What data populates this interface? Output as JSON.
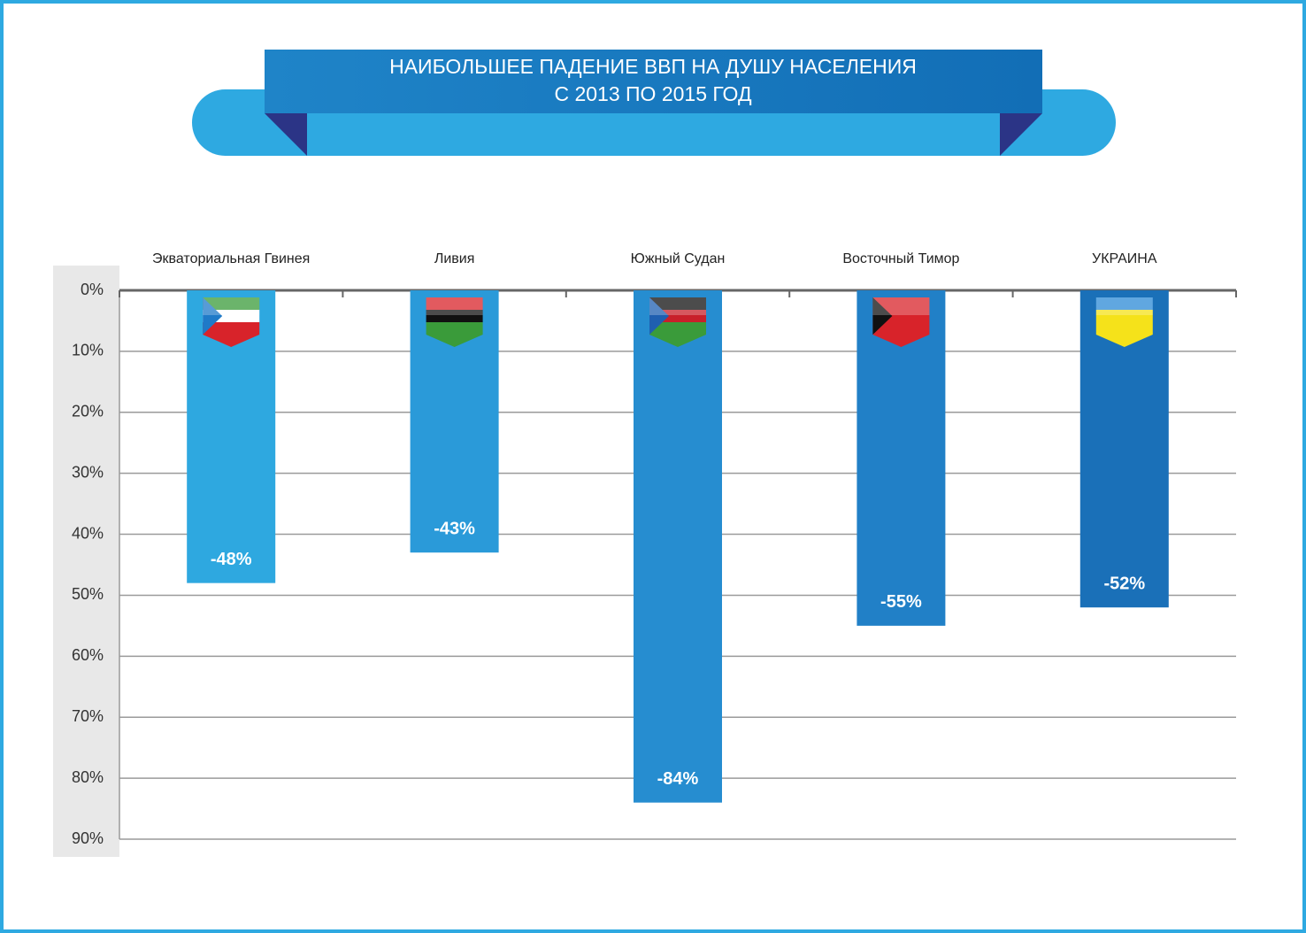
{
  "chart_data": {
    "type": "bar",
    "title": [
      "НАИБОЛЬШЕЕ ПАДЕНИЕ ВВП НА ДУШУ НАСЕЛЕНИЯ",
      "С 2013 ПО 2015 ГОД"
    ],
    "categories": [
      "Экваториальная Гвинея",
      "Ливия",
      "Южный Судан",
      "Восточный Тимор",
      "УКРАИНА"
    ],
    "values": [
      -48,
      -43,
      -84,
      -55,
      -52
    ],
    "value_labels": [
      "-48%",
      "-43%",
      "-84%",
      "-55%",
      "-52%"
    ],
    "colors": [
      "#2ea8e0",
      "#2a9ad9",
      "#268dd0",
      "#2180c7",
      "#1a70b8"
    ],
    "ylim": [
      0,
      -90
    ],
    "yticks": [
      {
        "value": 0,
        "label": "0%"
      },
      {
        "value": -10,
        "label": "10%"
      },
      {
        "value": -20,
        "label": "20%"
      },
      {
        "value": -30,
        "label": "30%"
      },
      {
        "value": -40,
        "label": "40%"
      },
      {
        "value": -50,
        "label": "50%"
      },
      {
        "value": -60,
        "label": "60%"
      },
      {
        "value": -70,
        "label": "70%"
      },
      {
        "value": -80,
        "label": "80%"
      },
      {
        "value": -90,
        "label": "90%"
      }
    ],
    "grid": true
  }
}
